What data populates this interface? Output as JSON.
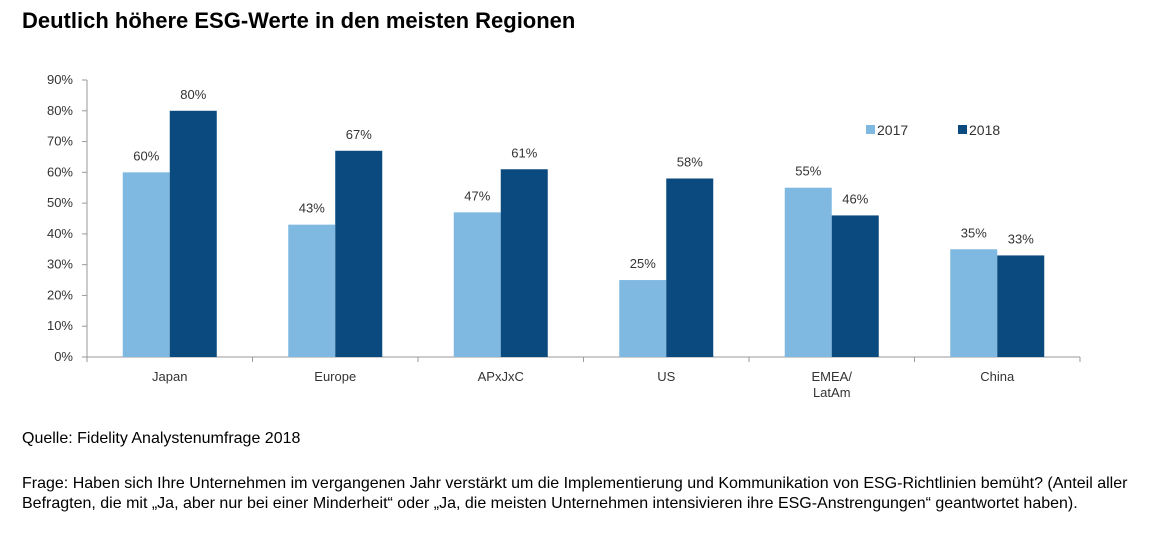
{
  "title": "Deutlich höhere ESG-Werte in den meisten Regionen",
  "source": "Quelle: Fidelity Analystenumfrage 2018",
  "question": "Frage: Haben sich Ihre Unternehmen im vergangenen Jahr verstärkt um die Implementierung und Kommunikation von ESG-Richtlinien bemüht? (Anteil aller Befragten, die mit  „Ja, aber nur bei einer Minderheit“ oder „Ja, die meisten Unternehmen intensivieren ihre ESG-Anstrengungen“ geantwortet haben).",
  "chart_data": {
    "type": "bar",
    "categories": [
      [
        "Japan"
      ],
      [
        "Europe"
      ],
      [
        "APxJxC"
      ],
      [
        "US"
      ],
      [
        "EMEA/",
        "LatAm"
      ],
      [
        "China"
      ]
    ],
    "series": [
      {
        "name": "2017",
        "values": [
          60,
          43,
          47,
          25,
          55,
          35
        ],
        "color": "#7fb8e0"
      },
      {
        "name": "2018",
        "values": [
          80,
          67,
          61,
          58,
          46,
          33
        ],
        "color": "#0a4a7f"
      }
    ],
    "y_ticks": [
      "0%",
      "10%",
      "20%",
      "30%",
      "40%",
      "50%",
      "60%",
      "70%",
      "80%",
      "90%"
    ],
    "data_labels": [
      [
        "60%",
        "43%",
        "47%",
        "25%",
        "55%",
        "35%"
      ],
      [
        "80%",
        "67%",
        "61%",
        "58%",
        "46%",
        "33%"
      ]
    ],
    "ylim": [
      0,
      90
    ],
    "grid": false,
    "legend_position": "top-right",
    "xlabel": "",
    "ylabel": ""
  }
}
